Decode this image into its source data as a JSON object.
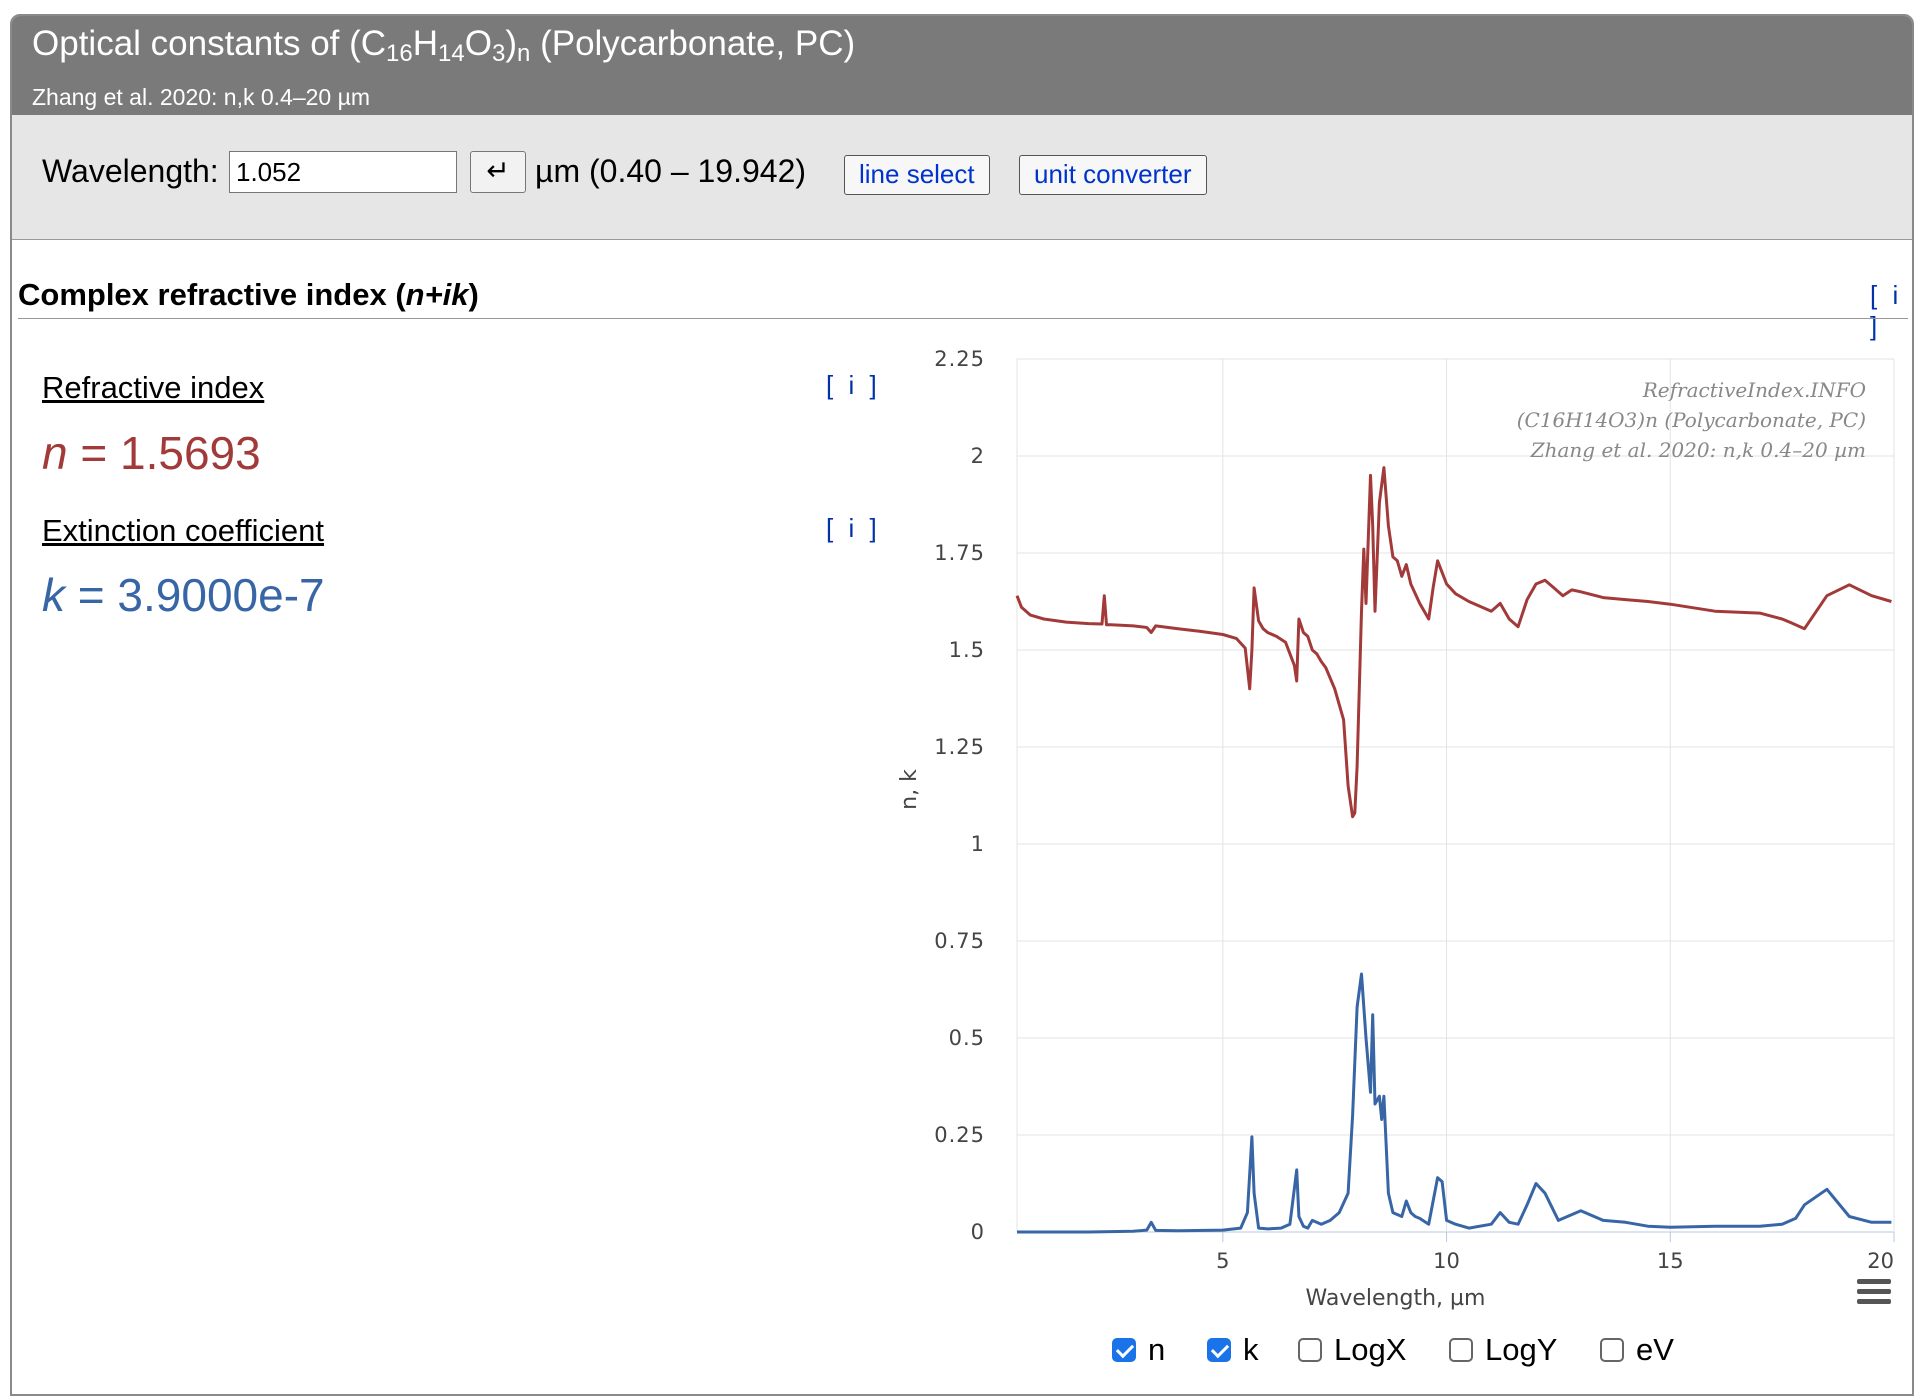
{
  "header": {
    "title_prefix": "Optical constants of (C",
    "sub16": "16",
    "h": "H",
    "sub14": "14",
    "o": "O",
    "sub3": "3",
    "paren": ")",
    "subn": "n",
    "title_suffix": " (Polycarbonate, PC)",
    "subtitle": "Zhang et al. 2020: n,k 0.4–20 µm"
  },
  "toolbar": {
    "wavelength_label": "Wavelength:",
    "wavelength_value": "1.052",
    "enter_symbol": "↵",
    "unit_range": "µm  (0.40 – 19.942)",
    "line_select": "line select",
    "unit_converter": "unit converter"
  },
  "section": {
    "title": "Complex refractive index (n+ik)",
    "info": "[ i ]"
  },
  "refractive": {
    "label": "Refractive index",
    "info": "[ i ]",
    "symbol": "n",
    "value": " = 1.5693"
  },
  "extinction": {
    "label": "Extinction coefficient",
    "info": "[ i ]",
    "symbol": "k",
    "value": " = 3.9000e-7"
  },
  "colors": {
    "n": "#a23a3a",
    "k": "#3865a5"
  },
  "checkboxes": [
    {
      "label": "n",
      "checked": true
    },
    {
      "label": "k",
      "checked": true
    },
    {
      "label": "LogX",
      "checked": false
    },
    {
      "label": "LogY",
      "checked": false
    },
    {
      "label": "eV",
      "checked": false
    }
  ],
  "chart_data": {
    "type": "line",
    "title": "",
    "xlabel": "Wavelength, µm",
    "ylabel": "n, k",
    "xlim": [
      0.4,
      20
    ],
    "ylim": [
      0,
      2.25
    ],
    "xticks": [
      5,
      10,
      15,
      20
    ],
    "yticks": [
      0,
      0.25,
      0.5,
      0.75,
      1,
      1.25,
      1.5,
      1.75,
      2,
      2.25
    ],
    "ytick_labels": [
      "0",
      "0.25",
      "0.5",
      "0.75",
      "1",
      "1.25",
      "1.5",
      "1.75",
      "2",
      "2.25"
    ],
    "watermark": [
      "RefractiveIndex.INFO",
      "(C16H14O3)n (Polycarbonate, PC)",
      "Zhang et al. 2020: n,k 0.4–20 µm"
    ],
    "series": [
      {
        "name": "n",
        "x": [
          0.4,
          0.5,
          0.7,
          1.0,
          1.5,
          2.0,
          2.3,
          2.35,
          2.4,
          2.5,
          3.0,
          3.3,
          3.4,
          3.5,
          4.0,
          4.5,
          5.0,
          5.3,
          5.5,
          5.6,
          5.65,
          5.7,
          5.8,
          5.9,
          6.0,
          6.2,
          6.4,
          6.6,
          6.65,
          6.7,
          6.8,
          6.9,
          7.0,
          7.1,
          7.2,
          7.3,
          7.5,
          7.7,
          7.8,
          7.9,
          7.95,
          8.0,
          8.1,
          8.15,
          8.2,
          8.3,
          8.35,
          8.4,
          8.5,
          8.6,
          8.7,
          8.8,
          8.9,
          9.0,
          9.1,
          9.2,
          9.4,
          9.6,
          9.7,
          9.8,
          9.9,
          10.0,
          10.2,
          10.5,
          11.0,
          11.2,
          11.4,
          11.6,
          11.8,
          12.0,
          12.2,
          12.4,
          12.6,
          12.8,
          13.0,
          13.5,
          14.0,
          14.5,
          15.0,
          16.0,
          17.0,
          17.5,
          17.7,
          18.0,
          18.5,
          19.0,
          19.5,
          19.942
        ],
        "values": [
          1.64,
          1.61,
          1.59,
          1.58,
          1.572,
          1.568,
          1.567,
          1.64,
          1.565,
          1.565,
          1.562,
          1.558,
          1.545,
          1.562,
          1.555,
          1.548,
          1.54,
          1.53,
          1.505,
          1.4,
          1.5,
          1.66,
          1.575,
          1.555,
          1.545,
          1.535,
          1.52,
          1.46,
          1.42,
          1.58,
          1.545,
          1.535,
          1.5,
          1.49,
          1.47,
          1.455,
          1.4,
          1.32,
          1.15,
          1.07,
          1.08,
          1.2,
          1.6,
          1.76,
          1.62,
          1.95,
          1.82,
          1.6,
          1.88,
          1.97,
          1.82,
          1.74,
          1.73,
          1.69,
          1.72,
          1.67,
          1.62,
          1.58,
          1.66,
          1.73,
          1.7,
          1.67,
          1.645,
          1.625,
          1.6,
          1.62,
          1.58,
          1.56,
          1.63,
          1.67,
          1.68,
          1.66,
          1.64,
          1.655,
          1.65,
          1.635,
          1.63,
          1.625,
          1.618,
          1.6,
          1.595,
          1.58,
          1.57,
          1.555,
          1.64,
          1.668,
          1.64,
          1.625
        ]
      },
      {
        "name": "k",
        "x": [
          0.4,
          2.0,
          3.0,
          3.3,
          3.4,
          3.5,
          4.0,
          5.0,
          5.4,
          5.55,
          5.65,
          5.7,
          5.8,
          6.0,
          6.3,
          6.5,
          6.65,
          6.7,
          6.8,
          6.9,
          7.0,
          7.2,
          7.4,
          7.6,
          7.8,
          7.9,
          8.0,
          8.1,
          8.2,
          8.3,
          8.35,
          8.4,
          8.5,
          8.55,
          8.6,
          8.7,
          8.8,
          9.0,
          9.1,
          9.2,
          9.3,
          9.4,
          9.6,
          9.8,
          9.9,
          10.0,
          10.2,
          10.5,
          11.0,
          11.2,
          11.4,
          11.6,
          11.8,
          12.0,
          12.2,
          12.5,
          13.0,
          13.5,
          14.0,
          14.5,
          15.0,
          16.0,
          17.0,
          17.5,
          17.8,
          18.0,
          18.5,
          19.0,
          19.5,
          19.942
        ],
        "values": [
          0.0,
          0.0,
          0.002,
          0.005,
          0.025,
          0.004,
          0.003,
          0.005,
          0.01,
          0.05,
          0.245,
          0.1,
          0.01,
          0.008,
          0.01,
          0.02,
          0.16,
          0.04,
          0.015,
          0.01,
          0.03,
          0.02,
          0.03,
          0.05,
          0.1,
          0.3,
          0.58,
          0.665,
          0.5,
          0.36,
          0.56,
          0.33,
          0.35,
          0.29,
          0.35,
          0.1,
          0.05,
          0.04,
          0.08,
          0.05,
          0.04,
          0.035,
          0.02,
          0.14,
          0.13,
          0.03,
          0.02,
          0.01,
          0.02,
          0.05,
          0.025,
          0.02,
          0.07,
          0.125,
          0.1,
          0.03,
          0.055,
          0.03,
          0.025,
          0.015,
          0.012,
          0.015,
          0.015,
          0.02,
          0.035,
          0.07,
          0.11,
          0.04,
          0.025,
          0.025
        ]
      }
    ]
  }
}
